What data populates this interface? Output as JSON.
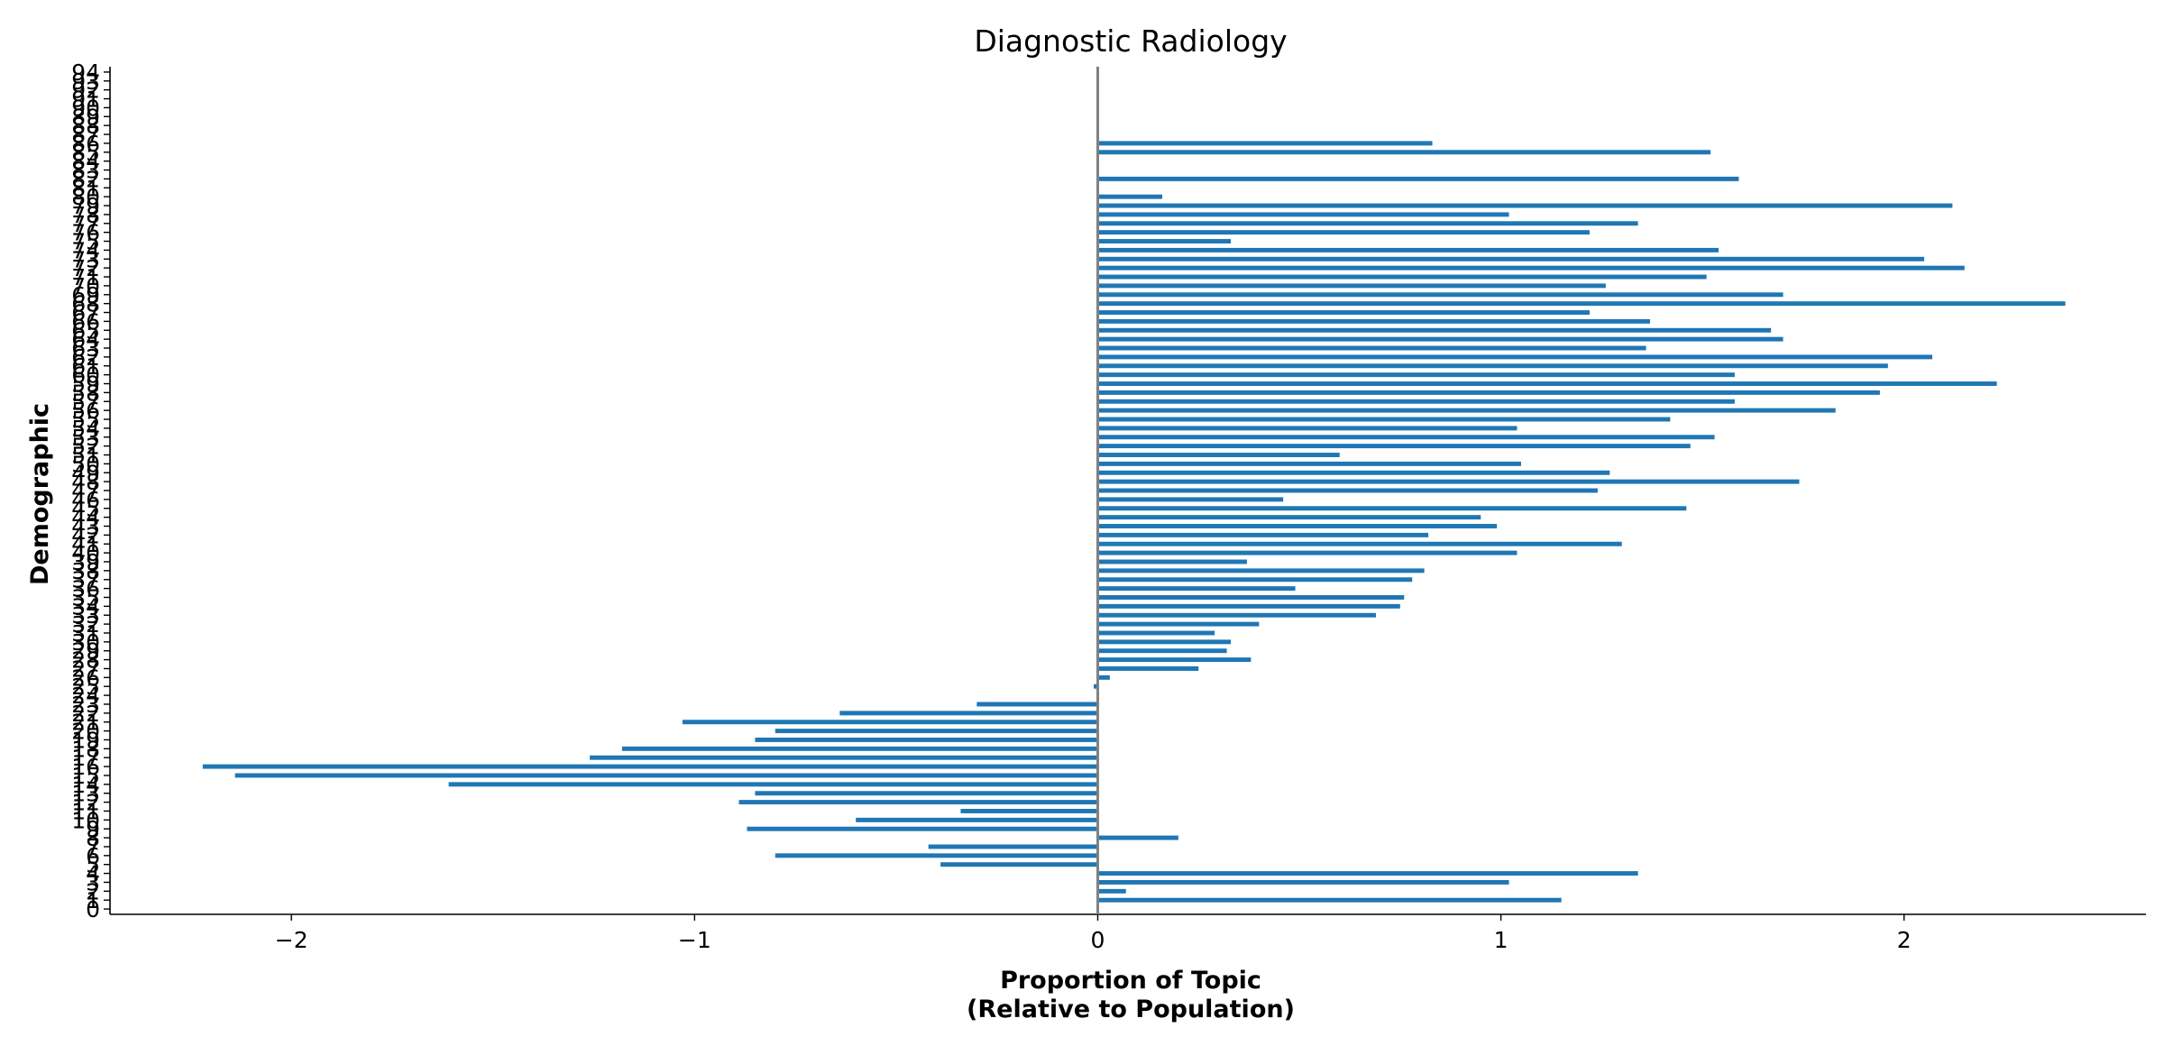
{
  "chart_data": {
    "type": "bar",
    "orientation": "horizontal",
    "title": "Diagnostic Radiology",
    "xlabel_lines": [
      "Proportion of Topic",
      "(Relative to Population)"
    ],
    "ylabel": "Demographic",
    "xlim": [
      -2.45,
      2.6
    ],
    "ylim": [
      -0.6,
      94.6
    ],
    "xticks": [
      -2,
      -1,
      0,
      1,
      2
    ],
    "xtick_labels": [
      "−2",
      "−1",
      "0",
      "1",
      "2"
    ],
    "bar_color": "#1f77b4",
    "zero_line_color": "#808080",
    "grid": false,
    "categories": [
      0,
      1,
      2,
      3,
      4,
      5,
      6,
      7,
      8,
      9,
      10,
      11,
      12,
      13,
      14,
      15,
      16,
      17,
      18,
      19,
      20,
      21,
      22,
      23,
      24,
      25,
      26,
      27,
      28,
      29,
      30,
      31,
      32,
      33,
      34,
      35,
      36,
      37,
      38,
      39,
      40,
      41,
      42,
      43,
      44,
      45,
      46,
      47,
      48,
      49,
      50,
      51,
      52,
      53,
      54,
      55,
      56,
      57,
      58,
      59,
      60,
      61,
      62,
      63,
      64,
      65,
      66,
      67,
      68,
      69,
      70,
      71,
      72,
      73,
      74,
      75,
      76,
      77,
      78,
      79,
      80,
      81,
      82,
      83,
      84,
      85,
      86,
      87,
      88,
      89,
      90,
      91,
      92,
      93,
      94
    ],
    "values": [
      0,
      1.15,
      0.07,
      1.02,
      1.34,
      -0.39,
      -0.8,
      -0.42,
      0.2,
      -0.87,
      -0.6,
      -0.34,
      -0.89,
      -0.85,
      -1.61,
      -2.14,
      -2.22,
      -1.26,
      -1.18,
      -0.85,
      -0.8,
      -1.03,
      -0.64,
      -0.3,
      0,
      -0.01,
      0.03,
      0.25,
      0.38,
      0.32,
      0.33,
      0.29,
      0.4,
      0.69,
      0.75,
      0.76,
      0.49,
      0.78,
      0.81,
      0.37,
      1.04,
      1.3,
      0.82,
      0.99,
      0.95,
      1.46,
      0.46,
      1.24,
      1.74,
      1.27,
      1.05,
      0.6,
      1.47,
      1.53,
      1.04,
      1.42,
      1.83,
      1.58,
      1.94,
      2.23,
      1.58,
      1.96,
      2.07,
      1.36,
      1.7,
      1.67,
      1.37,
      1.22,
      2.4,
      1.7,
      1.26,
      1.51,
      2.15,
      2.05,
      1.54,
      0.33,
      1.22,
      1.34,
      1.02,
      2.12,
      0.16,
      0,
      1.59,
      0,
      0,
      1.52,
      0.83,
      0,
      0,
      0,
      0,
      0,
      0,
      0,
      0
    ]
  }
}
